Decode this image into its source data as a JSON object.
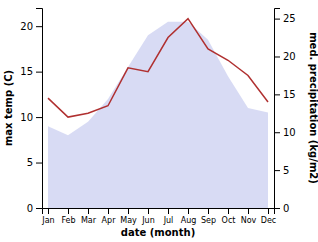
{
  "chart_data": {
    "type": "line",
    "categories": [
      "Jan",
      "Feb",
      "Mar",
      "Apr",
      "May",
      "Jun",
      "Jul",
      "Aug",
      "Sep",
      "Oct",
      "Nov",
      "Dec"
    ],
    "series": [
      {
        "type": "area",
        "color": "#c8ccf0",
        "values": [
          9.0,
          8.0,
          9.5,
          12.0,
          15.5,
          19.0,
          20.5,
          20.5,
          18.5,
          14.5,
          11.0,
          10.5
        ]
      },
      {
        "type": "line",
        "color": "#b03030",
        "axis": "y2",
        "values": [
          14.5,
          12.0,
          12.5,
          13.5,
          18.5,
          18.0,
          22.5,
          25.0,
          21.0,
          19.5,
          17.5,
          14.0
        ]
      }
    ],
    "xlabel": "date (month)",
    "ylabel": "max temp (C)",
    "y2label": "med. precipitation (kg/m2)",
    "ylim": [
      0,
      22
    ],
    "yticks": [
      0,
      5,
      10,
      15,
      20
    ],
    "y2lim": [
      0,
      26.4
    ],
    "y2ticks": [
      0,
      5,
      10,
      15,
      20,
      25
    ],
    "grid": false
  }
}
